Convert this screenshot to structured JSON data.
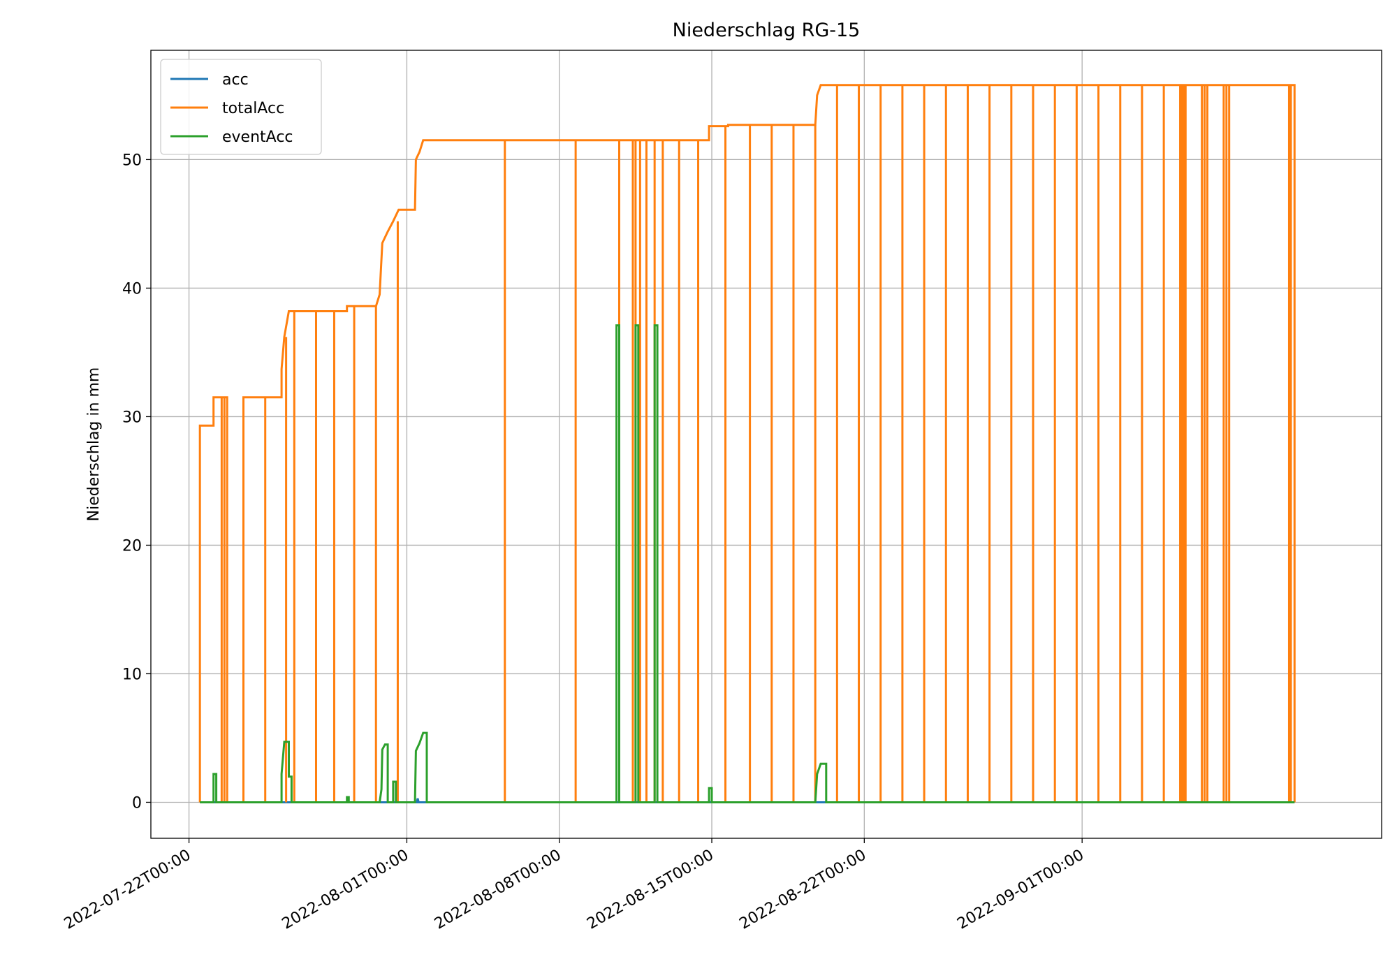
{
  "chart_data": {
    "type": "line",
    "title": "Niederschlag RG-15",
    "xlabel": "",
    "ylabel": "Niederschlag in mm",
    "xlim": [
      "2022-07-20T06:00",
      "2022-09-14T18:00"
    ],
    "ylim": [
      -2.8,
      58.5
    ],
    "yticks": [
      0,
      10,
      20,
      30,
      40,
      50
    ],
    "xticks": [
      "2022-07-22T00:00",
      "2022-08-01T00:00",
      "2022-08-08T00:00",
      "2022-08-15T00:00",
      "2022-08-22T00:00",
      "2022-09-01T00:00"
    ],
    "grid": true,
    "legend_position": "upper-left",
    "series": [
      {
        "name": "acc",
        "color": "#1f77b4",
        "points": [
          [
            "2022-07-22T12:00",
            0
          ],
          [
            "2022-07-31T12:00",
            0
          ],
          [
            "2022-07-31T13:00",
            0.4
          ],
          [
            "2022-07-31T14:00",
            0
          ],
          [
            "2022-08-01T11:00",
            0
          ],
          [
            "2022-08-01T12:00",
            0.3
          ],
          [
            "2022-08-01T13:00",
            0
          ],
          [
            "2022-09-10T18:00",
            0
          ]
        ],
        "drops": []
      },
      {
        "name": "totalAcc",
        "color": "#ff7f0e",
        "points": [
          [
            "2022-07-22T12:00",
            0
          ],
          [
            "2022-07-22T12:00",
            29.3
          ],
          [
            "2022-07-23T03:00",
            29.3
          ],
          [
            "2022-07-23T03:00",
            31.5
          ],
          [
            "2022-07-23T18:00",
            31.5
          ],
          [
            "2022-07-23T18:00",
            0
          ],
          [
            "2022-07-24T12:00",
            0
          ],
          [
            "2022-07-24T12:00",
            31.5
          ],
          [
            "2022-07-26T06:00",
            31.5
          ],
          [
            "2022-07-26T06:00",
            33.7
          ],
          [
            "2022-07-26T09:00",
            36.2
          ],
          [
            "2022-07-26T14:00",
            38.2
          ],
          [
            "2022-07-29T06:00",
            38.2
          ],
          [
            "2022-07-29T06:00",
            38.6
          ],
          [
            "2022-07-30T14:00",
            38.6
          ],
          [
            "2022-07-30T18:00",
            39.5
          ],
          [
            "2022-07-30T21:00",
            43.5
          ],
          [
            "2022-07-31T03:00",
            44.4
          ],
          [
            "2022-07-31T09:00",
            45.2
          ],
          [
            "2022-07-31T15:00",
            46.1
          ],
          [
            "2022-08-01T09:00",
            46.1
          ],
          [
            "2022-08-01T10:00",
            50.0
          ],
          [
            "2022-08-01T14:00",
            50.6
          ],
          [
            "2022-08-01T18:00",
            51.5
          ],
          [
            "2022-08-11T18:00",
            51.5
          ],
          [
            "2022-08-12T18:00",
            51.5
          ],
          [
            "2022-08-13T06:00",
            51.5
          ],
          [
            "2022-08-14T21:00",
            51.5
          ],
          [
            "2022-08-14T21:00",
            52.6
          ],
          [
            "2022-08-15T18:00",
            52.6
          ],
          [
            "2022-08-15T18:00",
            52.7
          ],
          [
            "2022-08-19T18:00",
            52.7
          ],
          [
            "2022-08-19T20:00",
            55.0
          ],
          [
            "2022-08-20T00:00",
            55.8
          ],
          [
            "2022-09-10T18:00",
            55.8
          ],
          [
            "2022-09-10T18:00",
            0
          ]
        ],
        "drops": [
          "2022-07-23T12:00",
          "2022-07-23T15:00",
          "2022-07-25T12:00",
          "2022-07-26T11:00",
          "2022-07-26T20:00",
          "2022-07-27T20:00",
          "2022-07-28T16:00",
          "2022-07-29T14:00",
          "2022-07-30T14:00",
          "2022-07-31T14:00",
          "2022-08-05T12:00",
          "2022-08-08T18:00",
          "2022-08-10T18:00",
          "2022-08-11T09:00",
          "2022-08-11T12:00",
          "2022-08-11T17:00",
          "2022-08-12T00:00",
          "2022-08-12T09:00",
          "2022-08-12T18:00",
          "2022-08-13T12:00",
          "2022-08-14T09:00",
          "2022-08-15T15:00",
          "2022-08-16T18:00",
          "2022-08-17T18:00",
          "2022-08-18T18:00",
          "2022-08-19T18:00",
          "2022-08-20T18:00",
          "2022-08-21T18:00",
          "2022-08-22T18:00",
          "2022-08-23T18:00",
          "2022-08-24T18:00",
          "2022-08-25T18:00",
          "2022-08-26T18:00",
          "2022-08-27T18:00",
          "2022-08-28T18:00",
          "2022-08-29T18:00",
          "2022-08-30T18:00",
          "2022-08-31T18:00",
          "2022-09-01T18:00",
          "2022-09-02T18:00",
          "2022-09-03T18:00",
          "2022-09-04T18:00",
          "2022-09-05T12:00",
          "2022-09-05T14:00",
          "2022-09-05T16:00",
          "2022-09-05T18:00",
          "2022-09-06T12:00",
          "2022-09-06T15:00",
          "2022-09-06T18:00",
          "2022-09-07T12:00",
          "2022-09-07T15:00",
          "2022-09-07T18:00",
          "2022-09-10T12:00",
          "2022-09-10T14:00"
        ]
      },
      {
        "name": "eventAcc",
        "color": "#2ca02c",
        "points": [
          [
            "2022-07-22T12:00",
            0
          ],
          [
            "2022-07-23T03:00",
            0
          ],
          [
            "2022-07-23T03:00",
            2.2
          ],
          [
            "2022-07-23T06:00",
            2.2
          ],
          [
            "2022-07-23T06:00",
            0
          ],
          [
            "2022-07-26T06:00",
            0
          ],
          [
            "2022-07-26T06:00",
            2.2
          ],
          [
            "2022-07-26T09:00",
            4.7
          ],
          [
            "2022-07-26T14:00",
            4.7
          ],
          [
            "2022-07-26T14:00",
            2.0
          ],
          [
            "2022-07-26T17:00",
            2.0
          ],
          [
            "2022-07-26T17:00",
            0
          ],
          [
            "2022-07-29T06:00",
            0
          ],
          [
            "2022-07-29T06:00",
            0.4
          ],
          [
            "2022-07-29T08:00",
            0.4
          ],
          [
            "2022-07-29T08:00",
            0
          ],
          [
            "2022-07-30T18:00",
            0
          ],
          [
            "2022-07-30T20:00",
            1.0
          ],
          [
            "2022-07-30T21:00",
            4.1
          ],
          [
            "2022-07-31T00:00",
            4.5
          ],
          [
            "2022-07-31T03:00",
            4.5
          ],
          [
            "2022-07-31T03:00",
            0
          ],
          [
            "2022-07-31T09:00",
            0
          ],
          [
            "2022-07-31T09:00",
            1.6
          ],
          [
            "2022-07-31T12:00",
            1.6
          ],
          [
            "2022-07-31T12:00",
            0
          ],
          [
            "2022-08-01T09:00",
            0
          ],
          [
            "2022-08-01T10:00",
            4.0
          ],
          [
            "2022-08-01T14:00",
            4.6
          ],
          [
            "2022-08-01T18:00",
            5.4
          ],
          [
            "2022-08-01T22:00",
            5.4
          ],
          [
            "2022-08-01T22:00",
            0
          ],
          [
            "2022-08-10T15:00",
            0
          ],
          [
            "2022-08-10T15:00",
            37.1
          ],
          [
            "2022-08-10T18:00",
            37.1
          ],
          [
            "2022-08-10T18:00",
            0
          ],
          [
            "2022-08-11T12:00",
            0
          ],
          [
            "2022-08-11T12:00",
            37.1
          ],
          [
            "2022-08-11T15:00",
            37.1
          ],
          [
            "2022-08-11T15:00",
            0
          ],
          [
            "2022-08-12T09:00",
            0
          ],
          [
            "2022-08-12T09:00",
            37.1
          ],
          [
            "2022-08-12T12:00",
            37.1
          ],
          [
            "2022-08-12T12:00",
            0
          ],
          [
            "2022-08-14T21:00",
            0
          ],
          [
            "2022-08-14T21:00",
            1.1
          ],
          [
            "2022-08-15T00:00",
            1.1
          ],
          [
            "2022-08-15T00:00",
            0
          ],
          [
            "2022-08-19T18:00",
            0
          ],
          [
            "2022-08-19T20:00",
            2.2
          ],
          [
            "2022-08-20T00:00",
            3.0
          ],
          [
            "2022-08-20T06:00",
            3.0
          ],
          [
            "2022-08-20T06:00",
            0
          ],
          [
            "2022-09-10T18:00",
            0
          ]
        ],
        "drops": []
      }
    ]
  }
}
